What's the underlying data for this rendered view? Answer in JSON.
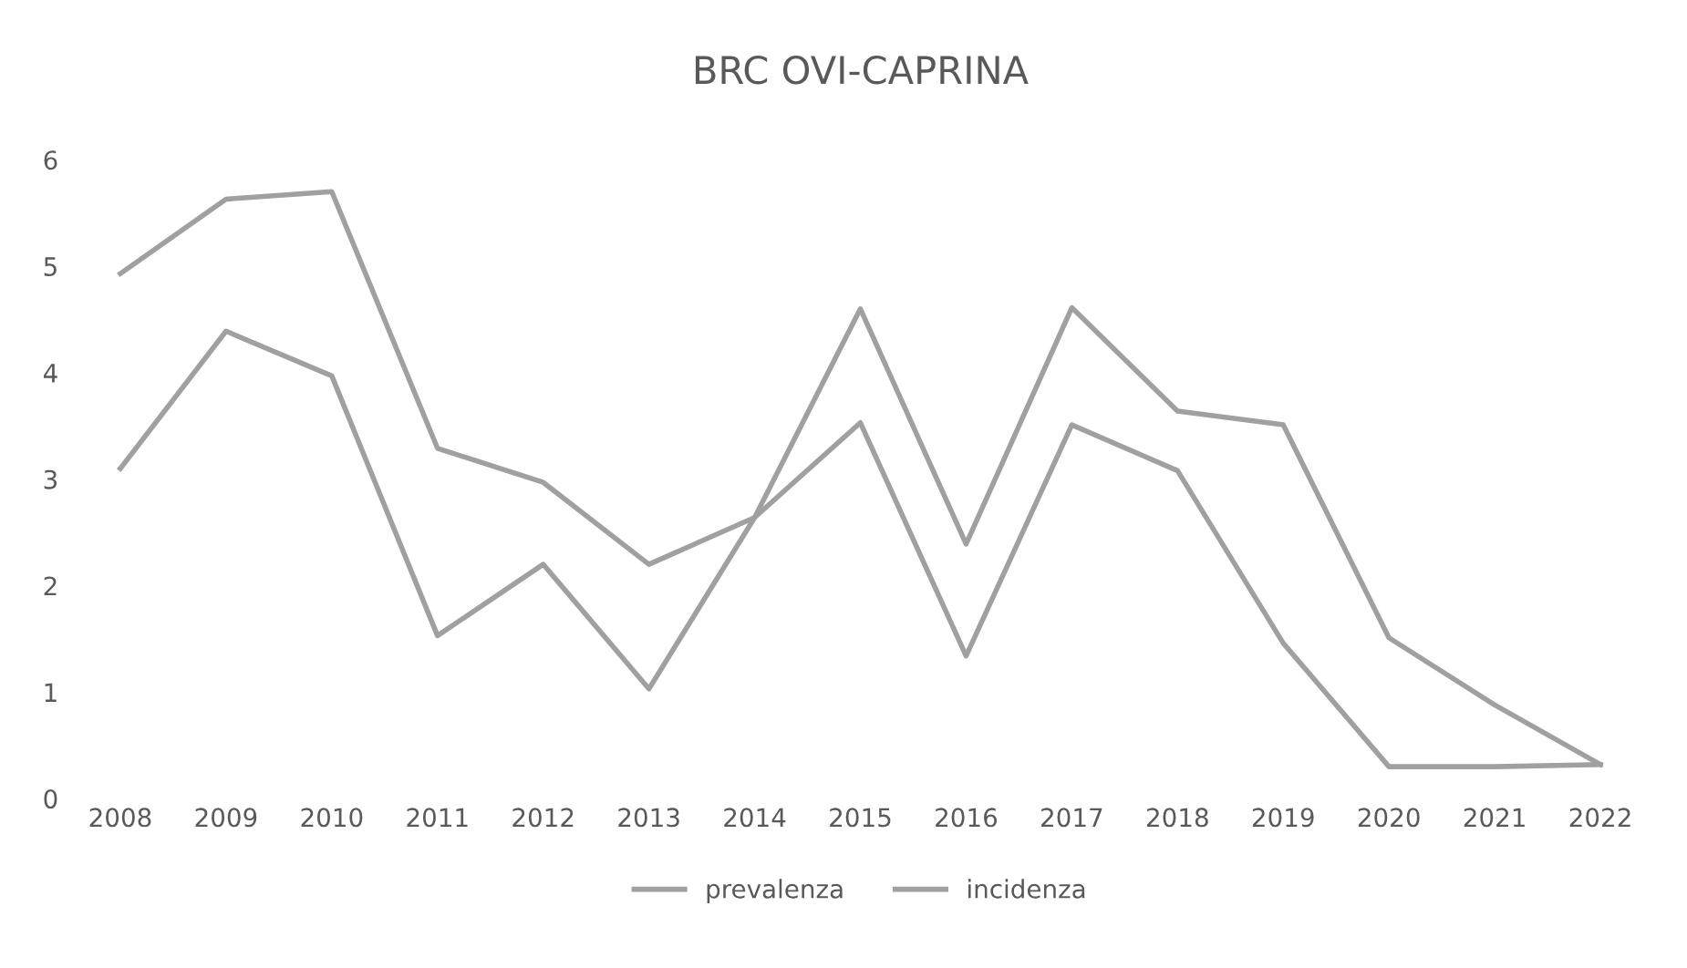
{
  "chart_data": {
    "type": "line",
    "title": "BRC OVI-CAPRINA",
    "categories": [
      "2008",
      "2009",
      "2010",
      "2011",
      "2012",
      "2013",
      "2014",
      "2015",
      "2016",
      "2017",
      "2018",
      "2019",
      "2020",
      "2021",
      "2022"
    ],
    "series": [
      {
        "name": "prevalenza",
        "color": "#a0a0a0",
        "values": [
          4.93,
          5.63,
          5.7,
          3.29,
          2.97,
          2.2,
          2.64,
          4.6,
          2.39,
          4.61,
          3.64,
          3.51,
          1.51,
          0.88,
          0.32
        ]
      },
      {
        "name": "incidenza",
        "color": "#a0a0a0",
        "values": [
          3.1,
          4.39,
          3.97,
          1.53,
          2.2,
          1.03,
          2.64,
          3.53,
          1.34,
          3.51,
          3.08,
          1.46,
          0.3,
          0.3,
          0.32
        ]
      }
    ],
    "ylim": [
      0,
      6
    ],
    "yticks": [
      0,
      1,
      2,
      3,
      4,
      5,
      6
    ],
    "grid": false,
    "legend": "bottom",
    "marker": "none",
    "line_style": "solid"
  }
}
